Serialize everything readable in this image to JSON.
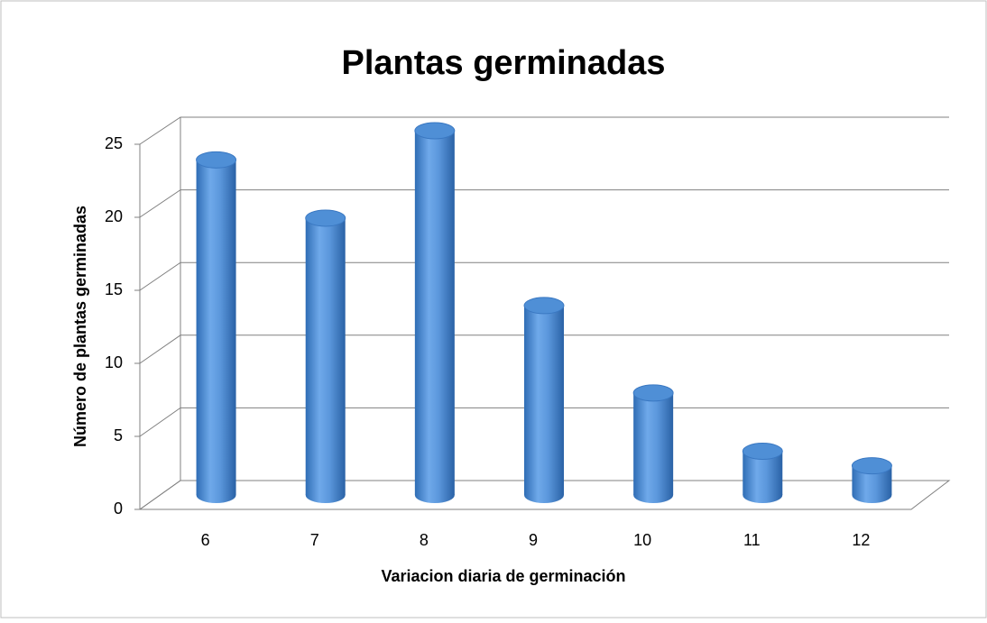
{
  "chart_data": {
    "type": "bar3d",
    "title": "Plantas germinadas",
    "x_label": "Variacion diaria de germinación",
    "y_label": "Número de plantas germinadas",
    "categories": [
      "6",
      "7",
      "8",
      "9",
      "10",
      "11",
      "12"
    ],
    "values": [
      23,
      19,
      25,
      13,
      7,
      3,
      2
    ],
    "color": "#4f8fd6",
    "ylim": [
      0,
      25
    ],
    "yticks": [
      0,
      5,
      10,
      15,
      20,
      25
    ],
    "grid": true
  }
}
